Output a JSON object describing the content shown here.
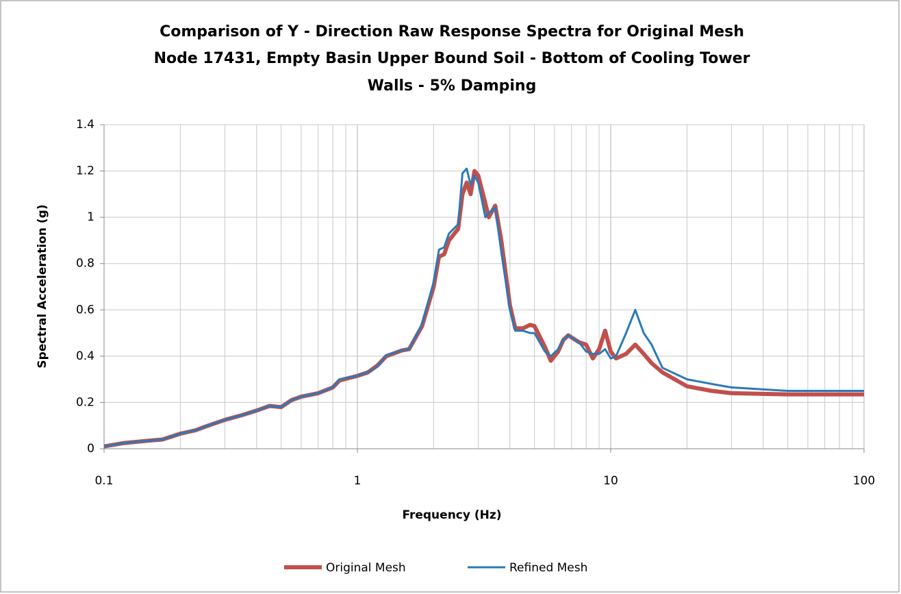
{
  "chart_data": {
    "type": "line",
    "title": [
      "Comparison of Y - Direction Raw Response Spectra for Original Mesh",
      "Node 17431, Empty Basin Upper Bound Soil - Bottom of Cooling Tower",
      "Walls  - 5% Damping"
    ],
    "x_label": "Frequency (Hz)",
    "y_label": "Spectral Acceleration (g)",
    "x": [
      0.1,
      0.12,
      0.15,
      0.17,
      0.2,
      0.23,
      0.25,
      0.3,
      0.35,
      0.4,
      0.45,
      0.5,
      0.55,
      0.6,
      0.7,
      0.8,
      0.85,
      1.0,
      1.1,
      1.2,
      1.3,
      1.5,
      1.6,
      1.8,
      2.0,
      2.1,
      2.2,
      2.3,
      2.5,
      2.6,
      2.7,
      2.8,
      2.9,
      3.0,
      3.2,
      3.3,
      3.5,
      3.7,
      4.0,
      4.2,
      4.5,
      4.8,
      5.0,
      5.5,
      5.8,
      6.2,
      6.5,
      6.8,
      7.5,
      8.0,
      8.5,
      9.0,
      9.5,
      10,
      10.5,
      11.5,
      12.5,
      13.5,
      14.5,
      16,
      20,
      25,
      30,
      50,
      100
    ],
    "series": [
      {
        "name": "Original Mesh",
        "color": "#c0504d",
        "width": 6,
        "values": [
          0.01,
          0.025,
          0.035,
          0.04,
          0.065,
          0.08,
          0.095,
          0.125,
          0.145,
          0.165,
          0.185,
          0.18,
          0.21,
          0.225,
          0.24,
          0.265,
          0.295,
          0.315,
          0.33,
          0.36,
          0.4,
          0.425,
          0.43,
          0.53,
          0.7,
          0.83,
          0.84,
          0.9,
          0.95,
          1.1,
          1.15,
          1.1,
          1.2,
          1.18,
          1.06,
          1.0,
          1.05,
          0.9,
          0.62,
          0.52,
          0.52,
          0.535,
          0.53,
          0.44,
          0.38,
          0.42,
          0.47,
          0.49,
          0.46,
          0.45,
          0.39,
          0.43,
          0.51,
          0.42,
          0.39,
          0.41,
          0.45,
          0.41,
          0.37,
          0.33,
          0.27,
          0.25,
          0.24,
          0.235,
          0.235
        ]
      },
      {
        "name": "Refined Mesh",
        "color": "#2a7ab8",
        "width": 3,
        "values": [
          0.01,
          0.025,
          0.035,
          0.04,
          0.065,
          0.08,
          0.095,
          0.125,
          0.145,
          0.165,
          0.185,
          0.18,
          0.21,
          0.225,
          0.24,
          0.265,
          0.3,
          0.315,
          0.33,
          0.355,
          0.405,
          0.425,
          0.43,
          0.54,
          0.72,
          0.86,
          0.87,
          0.93,
          0.97,
          1.19,
          1.21,
          1.14,
          1.18,
          1.15,
          1.0,
          1.02,
          1.04,
          0.85,
          0.6,
          0.51,
          0.51,
          0.5,
          0.5,
          0.42,
          0.4,
          0.43,
          0.47,
          0.49,
          0.46,
          0.42,
          0.41,
          0.41,
          0.43,
          0.39,
          0.4,
          0.5,
          0.6,
          0.5,
          0.45,
          0.35,
          0.3,
          0.28,
          0.265,
          0.25,
          0.25
        ]
      }
    ],
    "xlim": [
      0.1,
      100
    ],
    "xticks": [
      0.1,
      1,
      10,
      100
    ],
    "xscale": "log",
    "ylim": [
      0,
      1.4
    ],
    "yticks": [
      0,
      0.2,
      0.4,
      0.6,
      0.8,
      1,
      1.2,
      1.4
    ],
    "grid": true,
    "minor_grid": true,
    "legend": "bottom"
  }
}
